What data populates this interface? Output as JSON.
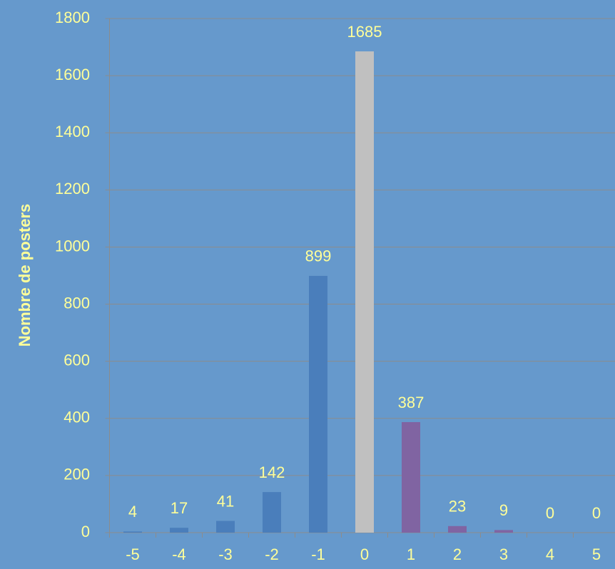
{
  "chart_data": {
    "type": "bar",
    "y_label": "Nombre de posters",
    "categories": [
      "-5",
      "-4",
      "-3",
      "-2",
      "-1",
      "0",
      "1",
      "2",
      "3",
      "4",
      "5"
    ],
    "values": [
      4,
      17,
      41,
      142,
      899,
      1685,
      387,
      23,
      9,
      0,
      0
    ],
    "colors": [
      "#4a7ebb",
      "#4a7ebb",
      "#4a7ebb",
      "#4a7ebb",
      "#4a7ebb",
      "#c0c0c0",
      "#8064a2",
      "#8064a2",
      "#8064a2",
      "#8064a2",
      "#8064a2"
    ],
    "ylim": [
      0,
      1800
    ],
    "yticks": [
      0,
      200,
      400,
      600,
      800,
      1000,
      1200,
      1400,
      1600,
      1800
    ],
    "grid": true
  }
}
